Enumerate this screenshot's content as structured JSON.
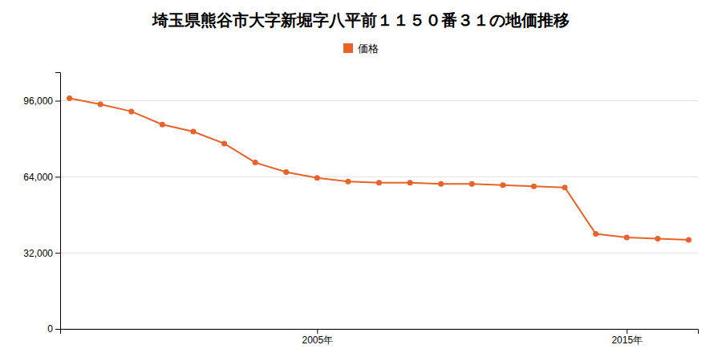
{
  "chart_data": {
    "type": "line",
    "title": "埼玉県熊谷市大字新堀字八平前１１５０番３１の地価推移",
    "x": [
      1997,
      1998,
      1999,
      2000,
      2001,
      2002,
      2003,
      2004,
      2005,
      2006,
      2007,
      2008,
      2009,
      2010,
      2011,
      2012,
      2013,
      2014,
      2015,
      2016,
      2017
    ],
    "series": [
      {
        "name": "価格",
        "color": "#e8622a",
        "marker": "circle",
        "line_style": "solid",
        "values": [
          97000,
          94500,
          91500,
          86000,
          83000,
          78000,
          70000,
          66000,
          63500,
          62000,
          61500,
          61500,
          61000,
          61000,
          60500,
          60000,
          59500,
          40000,
          38500,
          38000,
          37500
        ]
      }
    ],
    "xlim": [
      1996.7,
      2017.3
    ],
    "xticks": [
      {
        "value": 2005,
        "label": "2005年"
      },
      {
        "value": 2015,
        "label": "2015年"
      }
    ],
    "ylim": [
      0,
      108000
    ],
    "yticks": [
      0,
      {
        "value": 32000,
        "label": "32,000"
      },
      {
        "value": 64000,
        "label": "64,000"
      },
      {
        "value": 96000,
        "label": "96,000"
      }
    ],
    "grid": true,
    "legend": "top"
  }
}
